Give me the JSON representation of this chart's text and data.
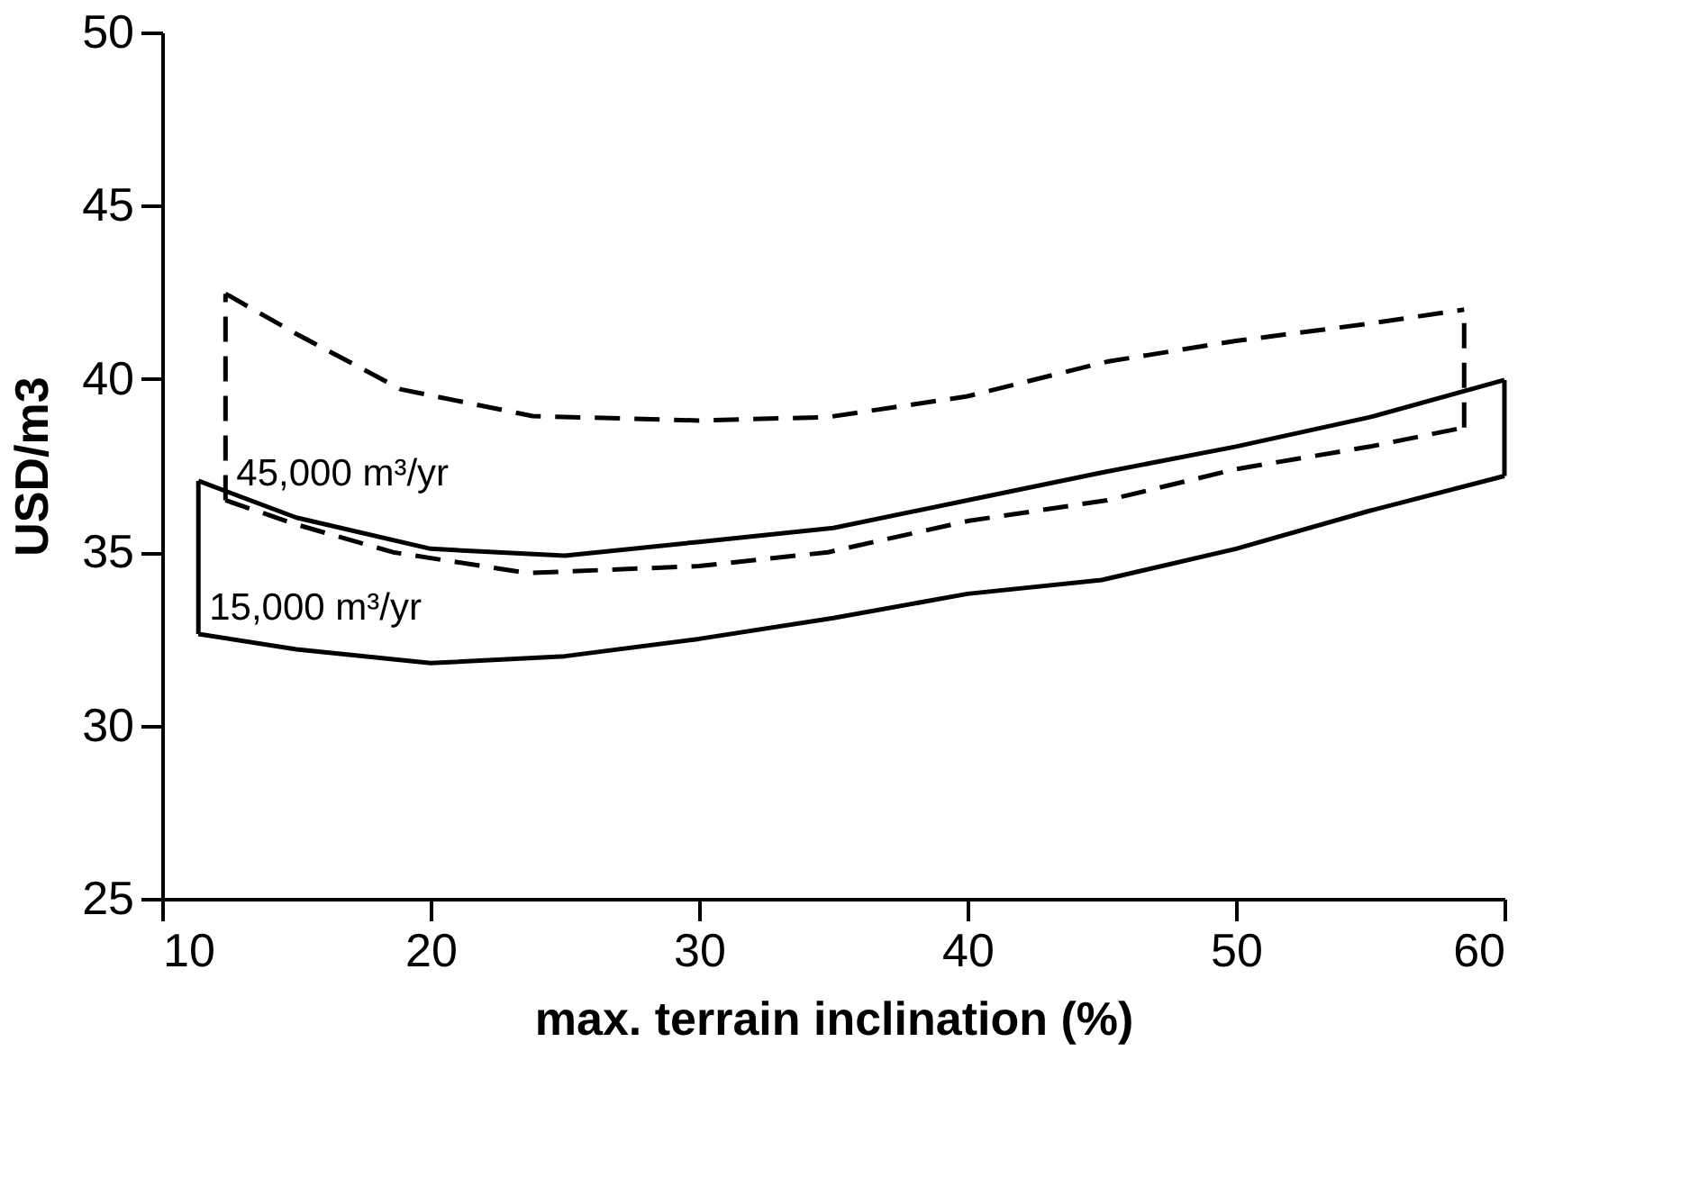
{
  "chart_data": {
    "type": "line",
    "xlabel": "max. terrain inclination (%)",
    "ylabel": "USD/m3",
    "xlim": [
      10,
      60
    ],
    "xticks": [
      10,
      20,
      30,
      40,
      50,
      60
    ],
    "ylim": [
      25,
      50
    ],
    "yticks": [
      25,
      30,
      35,
      40,
      45,
      50
    ],
    "grid": false,
    "marker": "none",
    "series": [
      {
        "color": "#000000",
        "line_style": "dashed",
        "x": [
          12.36,
          15,
          18.9,
          23.8,
          30,
          34.8,
          40,
          45.2,
          50,
          55,
          58.5
        ],
        "values": [
          42.46,
          41.3,
          39.7,
          38.93,
          38.8,
          38.9,
          39.5,
          40.5,
          41.1,
          41.6,
          42.0
        ]
      },
      {
        "name": "45,000 m³/yr",
        "color": "#000000",
        "line_style": "dashed",
        "x": [
          12.36,
          15,
          18.6,
          23.6,
          30,
          34.8,
          40,
          45.2,
          50,
          55,
          58.5
        ],
        "values": [
          36.5,
          35.8,
          35.0,
          34.4,
          34.6,
          35.0,
          35.9,
          36.5,
          37.4,
          38.05,
          38.6
        ]
      },
      {
        "color": "#000000",
        "line_style": "dashed",
        "x": [
          12.36,
          12.36
        ],
        "values": [
          36.5,
          42.46
        ]
      },
      {
        "color": "#000000",
        "line_style": "dashed",
        "x": [
          58.5,
          58.5
        ],
        "values": [
          38.6,
          42.0
        ]
      },
      {
        "color": "#000000",
        "line_style": "solid",
        "x": [
          11.35,
          15,
          20,
          25,
          30,
          35,
          40,
          45,
          50,
          55,
          60
        ],
        "values": [
          37.06,
          36.0,
          35.1,
          34.9,
          35.3,
          35.7,
          36.5,
          37.3,
          38.05,
          38.9,
          39.97
        ]
      },
      {
        "name": "15,000 m³/yr",
        "color": "#000000",
        "line_style": "solid",
        "x": [
          11.35,
          15,
          20,
          25,
          30,
          35,
          40,
          45,
          50,
          55,
          60
        ],
        "values": [
          32.64,
          32.2,
          31.8,
          32.0,
          32.5,
          33.1,
          33.8,
          34.2,
          35.1,
          36.2,
          37.2
        ]
      },
      {
        "color": "#000000",
        "line_style": "solid",
        "x": [
          11.35,
          11.35
        ],
        "values": [
          32.64,
          37.06
        ]
      },
      {
        "color": "#000000",
        "line_style": "solid",
        "x": [
          60,
          60
        ],
        "values": [
          37.2,
          39.97
        ]
      }
    ]
  }
}
